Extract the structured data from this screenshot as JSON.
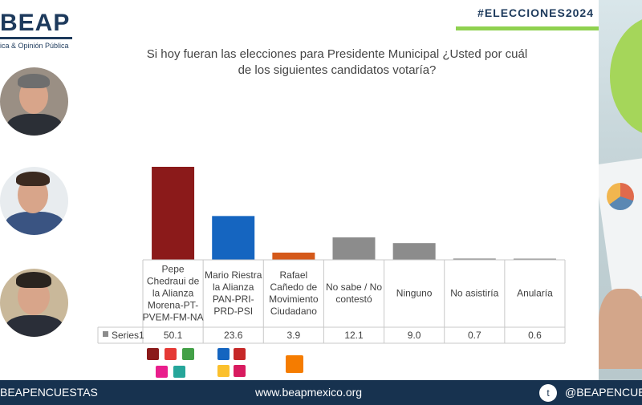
{
  "header": {
    "brand": "BEAP",
    "tagline": "ica & Opinión Pública",
    "hashtag": "#ELECCIONES2024"
  },
  "question": {
    "line1": "Si hoy fueran las elecciones para Presidente Municipal ¿Usted por cuál",
    "line2": "de los siguientes candidatos votaría?"
  },
  "chart_data": {
    "type": "bar",
    "categories": [
      [
        "Pepe",
        "Chedraui de",
        "la Alianza",
        "Morena-PT-",
        "PVEM-FM-NA"
      ],
      [
        "Mario Riestra",
        "la Alianza",
        "PAN-PRI-",
        "PRD-PSI"
      ],
      [
        "Rafael",
        "Cañedo de",
        "Movimiento",
        "Ciudadano"
      ],
      [
        "No sabe / No",
        "contestó"
      ],
      [
        "Ninguno"
      ],
      [
        "No asistiría"
      ],
      [
        "Anularía"
      ]
    ],
    "series": [
      {
        "name": "Series1",
        "values": [
          50.1,
          23.6,
          3.9,
          12.1,
          9.0,
          0.7,
          0.6
        ],
        "labels": [
          "50.1",
          "23.6",
          "3.9",
          "12.1",
          "9.0",
          "0.7",
          "0.6"
        ]
      }
    ],
    "ylim": [
      0,
      55
    ],
    "colors": [
      "#8b1a1a",
      "#1565c0",
      "#d4591a",
      "#8c8c8c",
      "#8c8c8c",
      "#8c8c8c",
      "#8c8c8c"
    ],
    "legend_swatch": "#8c8c8c",
    "grid": false,
    "data_table": true
  },
  "footer": {
    "left": "BEAPENCUESTAS",
    "center": "www.beapmexico.org",
    "right": "@BEAPENCUESTAS"
  },
  "icons": {
    "twitter": "twitter-icon"
  }
}
